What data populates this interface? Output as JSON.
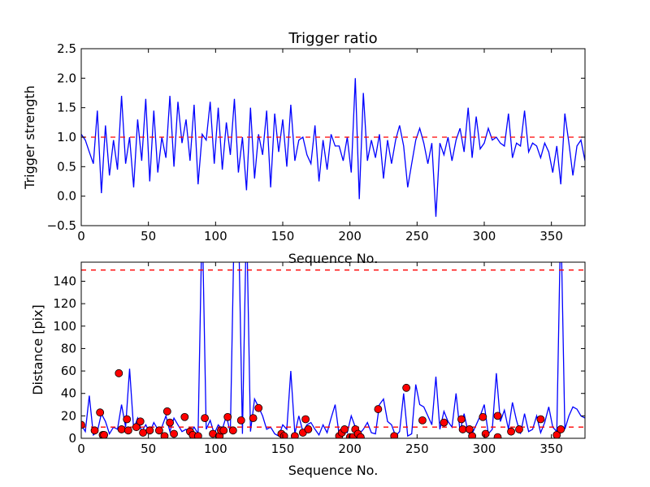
{
  "chart_data": [
    {
      "type": "line",
      "title": "Trigger ratio",
      "xlabel": "Sequence No.",
      "ylabel": "Trigger strength",
      "xlim": [
        0,
        375
      ],
      "ylim": [
        -0.5,
        2.5
      ],
      "xticks": [
        "0",
        "50",
        "100",
        "150",
        "200",
        "250",
        "300",
        "350"
      ],
      "yticks": [
        "−0.5",
        "0.0",
        "0.5",
        "1.0",
        "1.5",
        "2.0",
        "2.5"
      ],
      "x_step": 3,
      "series": [
        {
          "name": "trigger strength",
          "color": "#0000ff",
          "values": [
            1.05,
            0.95,
            0.75,
            0.55,
            1.45,
            0.05,
            1.2,
            0.35,
            0.95,
            0.45,
            1.7,
            0.55,
            1.0,
            0.15,
            1.3,
            0.6,
            1.65,
            0.25,
            1.45,
            0.4,
            1.0,
            0.65,
            1.7,
            0.5,
            1.6,
            0.9,
            1.3,
            0.6,
            1.55,
            0.2,
            1.05,
            0.95,
            1.6,
            0.55,
            1.5,
            0.45,
            1.25,
            0.7,
            1.65,
            0.4,
            1.0,
            0.1,
            1.5,
            0.3,
            1.05,
            0.7,
            1.45,
            0.15,
            1.4,
            0.75,
            1.3,
            0.5,
            1.55,
            0.6,
            0.95,
            1.0,
            0.7,
            0.55,
            1.2,
            0.25,
            0.95,
            0.45,
            1.05,
            0.85,
            0.85,
            0.6,
            1.0,
            0.4,
            2.0,
            -0.05,
            1.75,
            0.6,
            0.95,
            0.65,
            1.05,
            0.3,
            0.95,
            0.55,
            0.95,
            1.2,
            0.85,
            0.15,
            0.55,
            0.95,
            1.15,
            0.9,
            0.55,
            0.9,
            -0.35,
            0.9,
            0.7,
            1.0,
            0.6,
            0.95,
            1.15,
            0.75,
            1.5,
            0.65,
            1.35,
            0.8,
            0.9,
            1.15,
            0.95,
            1.0,
            0.9,
            0.85,
            1.4,
            0.65,
            0.9,
            0.85,
            1.45,
            0.75,
            0.9,
            0.85,
            0.65,
            0.9,
            0.75,
            0.4,
            0.85,
            0.2,
            1.4,
            0.9,
            0.35,
            0.85,
            0.95,
            0.6
          ]
        }
      ],
      "reference_lines": [
        {
          "y": 1.0,
          "color": "#ff0000",
          "style": "dashed"
        }
      ],
      "grid": false
    },
    {
      "type": "line",
      "title": "",
      "xlabel": "Sequence No.",
      "ylabel": "Distance [pix]",
      "xlim": [
        0,
        375
      ],
      "ylim": [
        0,
        157
      ],
      "xticks": [
        "0",
        "50",
        "100",
        "150",
        "200",
        "250",
        "300",
        "350"
      ],
      "yticks": [
        "0",
        "20",
        "40",
        "60",
        "80",
        "100",
        "120",
        "140"
      ],
      "x_step": 3,
      "series": [
        {
          "name": "distance",
          "color": "#0000ff",
          "values": [
            12,
            6,
            38,
            3,
            6,
            22,
            15,
            4,
            10,
            8,
            30,
            10,
            62,
            8,
            18,
            6,
            12,
            5,
            14,
            8,
            10,
            20,
            6,
            18,
            12,
            6,
            8,
            4,
            10,
            4,
            200,
            8,
            16,
            4,
            12,
            8,
            20,
            5,
            200,
            200,
            4,
            200,
            6,
            35,
            28,
            20,
            8,
            10,
            4,
            2,
            12,
            8,
            60,
            4,
            20,
            6,
            12,
            14,
            8,
            3,
            12,
            5,
            18,
            30,
            3,
            8,
            5,
            20,
            10,
            4,
            8,
            14,
            5,
            4,
            30,
            35,
            15,
            12,
            2,
            6,
            40,
            2,
            4,
            48,
            30,
            28,
            20,
            12,
            55,
            8,
            24,
            15,
            10,
            40,
            6,
            22,
            5,
            4,
            12,
            20,
            30,
            4,
            8,
            58,
            15,
            25,
            8,
            32,
            16,
            4,
            22,
            6,
            8,
            20,
            5,
            14,
            28,
            10,
            6,
            200,
            8,
            20,
            28,
            26,
            20,
            18
          ]
        }
      ],
      "markers": {
        "color": "#ff0000",
        "points": [
          [
            0,
            12
          ],
          [
            10,
            7
          ],
          [
            14,
            23
          ],
          [
            16,
            3
          ],
          [
            17,
            3
          ],
          [
            28,
            58
          ],
          [
            30,
            8
          ],
          [
            34,
            17
          ],
          [
            35,
            7
          ],
          [
            41,
            10
          ],
          [
            44,
            15
          ],
          [
            46,
            5
          ],
          [
            51,
            7
          ],
          [
            58,
            7
          ],
          [
            62,
            2
          ],
          [
            64,
            24
          ],
          [
            66,
            14
          ],
          [
            69,
            4
          ],
          [
            77,
            19
          ],
          [
            81,
            6
          ],
          [
            83,
            3
          ],
          [
            87,
            2
          ],
          [
            92,
            18
          ],
          [
            98,
            4
          ],
          [
            103,
            2
          ],
          [
            104,
            7
          ],
          [
            106,
            7
          ],
          [
            109,
            19
          ],
          [
            113,
            7
          ],
          [
            119,
            16
          ],
          [
            128,
            18
          ],
          [
            132,
            27
          ],
          [
            149,
            4
          ],
          [
            151,
            2
          ],
          [
            159,
            2
          ],
          [
            165,
            5
          ],
          [
            167,
            17
          ],
          [
            169,
            8
          ],
          [
            192,
            2
          ],
          [
            194,
            5
          ],
          [
            196,
            8
          ],
          [
            200,
            1
          ],
          [
            202,
            1
          ],
          [
            204,
            8
          ],
          [
            206,
            4
          ],
          [
            208,
            1
          ],
          [
            221,
            26
          ],
          [
            233,
            2
          ],
          [
            242,
            45
          ],
          [
            254,
            16
          ],
          [
            270,
            14
          ],
          [
            283,
            17
          ],
          [
            284,
            8
          ],
          [
            289,
            8
          ],
          [
            291,
            2
          ],
          [
            299,
            19
          ],
          [
            301,
            4
          ],
          [
            310,
            20
          ],
          [
            310,
            1
          ],
          [
            320,
            6
          ],
          [
            326,
            8
          ],
          [
            342,
            17
          ],
          [
            354,
            3
          ],
          [
            357,
            8
          ]
        ]
      },
      "reference_lines": [
        {
          "y": 10,
          "color": "#ff0000",
          "style": "dashed"
        },
        {
          "y": 150,
          "color": "#ff0000",
          "style": "dashed"
        }
      ],
      "grid": false
    }
  ]
}
